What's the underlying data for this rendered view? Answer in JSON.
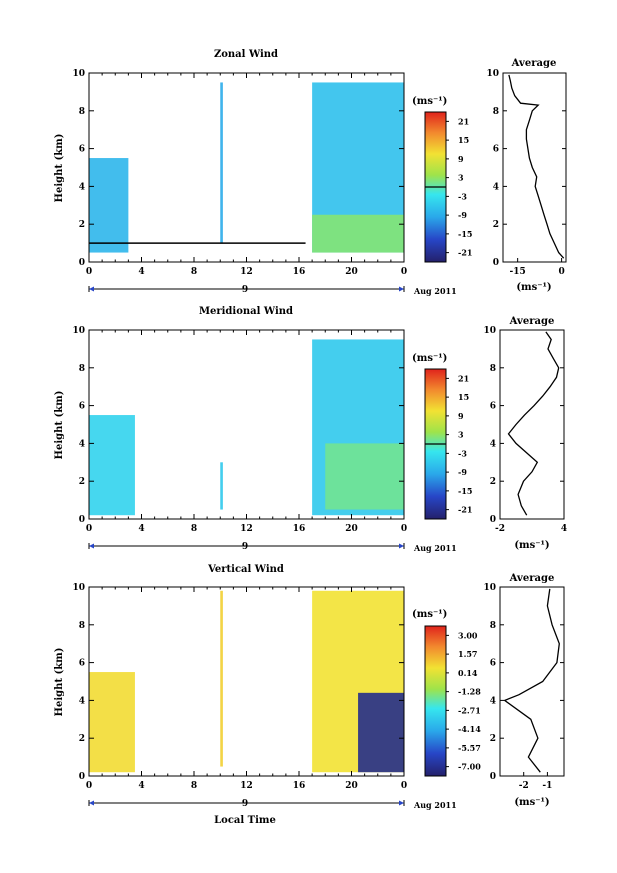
{
  "chart_data": [
    {
      "type": "heatmap",
      "title": "Zonal Wind",
      "xlabel": "",
      "ylabel": "Height (km)",
      "xlim": [
        0,
        24
      ],
      "ylim": [
        0,
        10
      ],
      "xticks": [
        "0",
        "4",
        "8",
        "12",
        "16",
        "20",
        "0"
      ],
      "yticks": [
        "0",
        "2",
        "4",
        "6",
        "8",
        "10"
      ],
      "date_axis": {
        "label": "9",
        "date": "Aug 2011"
      },
      "colorbar": {
        "unit": "(ms⁻¹)",
        "ticks": [
          "21",
          "15",
          "9",
          "3",
          "-3",
          "-9",
          "-15",
          "-21"
        ],
        "contour_level": "0"
      },
      "regions": [
        {
          "x": [
            0,
            3
          ],
          "y": [
            0.5,
            5.5
          ],
          "value": -7
        },
        {
          "x": [
            10,
            10.2
          ],
          "y": [
            1,
            9.5
          ],
          "value": -8
        },
        {
          "x": [
            17,
            24
          ],
          "y": [
            0.5,
            9.5
          ],
          "value": -6
        },
        {
          "x": [
            17,
            24
          ],
          "y": [
            0.5,
            2.5
          ],
          "value": 2
        }
      ],
      "line": {
        "y": 1.0,
        "x": [
          0,
          16.5
        ]
      },
      "average": {
        "title": "Average",
        "xlabel": "(ms⁻¹)",
        "xticks": [
          "-15",
          "0"
        ],
        "xlim": [
          -20,
          1.5
        ],
        "profile": [
          [
            0.7,
            0.2
          ],
          [
            -1,
            0.5
          ],
          [
            -2.5,
            1
          ],
          [
            -4,
            1.5
          ],
          [
            -5,
            2
          ],
          [
            -6,
            2.5
          ],
          [
            -7,
            3
          ],
          [
            -8,
            3.5
          ],
          [
            -9,
            4
          ],
          [
            -8.5,
            4.5
          ],
          [
            -10,
            5
          ],
          [
            -11,
            5.5
          ],
          [
            -11.5,
            6
          ],
          [
            -12,
            6.5
          ],
          [
            -12,
            7
          ],
          [
            -11,
            7.5
          ],
          [
            -10,
            8
          ],
          [
            -8,
            8.3
          ],
          [
            -14,
            8.4
          ],
          [
            -16,
            8.8
          ],
          [
            -17,
            9.2
          ],
          [
            -17.5,
            9.6
          ],
          [
            -18,
            9.9
          ]
        ]
      }
    },
    {
      "type": "heatmap",
      "title": "Meridional Wind",
      "xlabel": "",
      "ylabel": "Height (km)",
      "xlim": [
        0,
        24
      ],
      "ylim": [
        0,
        10
      ],
      "xticks": [
        "0",
        "4",
        "8",
        "12",
        "16",
        "20",
        "0"
      ],
      "yticks": [
        "0",
        "2",
        "4",
        "6",
        "8",
        "10"
      ],
      "date_axis": {
        "label": "9",
        "date": "Aug 2011"
      },
      "colorbar": {
        "unit": "(ms⁻¹)",
        "ticks": [
          "21",
          "15",
          "9",
          "3",
          "-3",
          "-9",
          "-15",
          "-21"
        ],
        "contour_level": "0"
      },
      "regions": [
        {
          "x": [
            0,
            3.5
          ],
          "y": [
            0.2,
            5.5
          ],
          "value": -4
        },
        {
          "x": [
            10,
            10.2
          ],
          "y": [
            0.5,
            3
          ],
          "value": -5
        },
        {
          "x": [
            17,
            24
          ],
          "y": [
            0.2,
            9.5
          ],
          "value": -5
        },
        {
          "x": [
            18,
            24
          ],
          "y": [
            0.5,
            4
          ],
          "value": 1
        }
      ],
      "average": {
        "title": "Average",
        "xlabel": "(ms⁻¹)",
        "xticks": [
          "-2",
          "4"
        ],
        "xlim": [
          -2,
          4
        ],
        "profile": [
          [
            0.5,
            0.2
          ],
          [
            0,
            0.7
          ],
          [
            -0.3,
            1.3
          ],
          [
            0.2,
            2
          ],
          [
            1,
            2.5
          ],
          [
            1.5,
            3
          ],
          [
            0.5,
            3.5
          ],
          [
            -0.5,
            4
          ],
          [
            -1.2,
            4.5
          ],
          [
            -0.5,
            5
          ],
          [
            0.3,
            5.5
          ],
          [
            1.2,
            6
          ],
          [
            2,
            6.5
          ],
          [
            2.7,
            7
          ],
          [
            3.3,
            7.5
          ],
          [
            3.5,
            8
          ],
          [
            3,
            8.5
          ],
          [
            2.5,
            9
          ],
          [
            2.8,
            9.5
          ],
          [
            2.3,
            9.9
          ]
        ]
      }
    },
    {
      "type": "heatmap",
      "title": "Vertical Wind",
      "xlabel": "Local Time",
      "ylabel": "Height (km)",
      "xlim": [
        0,
        24
      ],
      "ylim": [
        0,
        10
      ],
      "xticks": [
        "0",
        "4",
        "8",
        "12",
        "16",
        "20",
        "0"
      ],
      "yticks": [
        "0",
        "2",
        "4",
        "6",
        "8",
        "10"
      ],
      "date_axis": {
        "label": "9",
        "date": "Aug 2011"
      },
      "colorbar": {
        "unit": "(ms⁻¹)",
        "ticks": [
          "3.00",
          "1.57",
          "0.14",
          "-1.28",
          "-2.71",
          "-4.14",
          "-5.57",
          "-7.00"
        ]
      },
      "regions": [
        {
          "x": [
            0,
            3.5
          ],
          "y": [
            0.2,
            5.5
          ],
          "value": 0.3
        },
        {
          "x": [
            10,
            10.2
          ],
          "y": [
            0.5,
            9.8
          ],
          "value": 0.5
        },
        {
          "x": [
            17,
            24
          ],
          "y": [
            0.2,
            9.8
          ],
          "value": 0.2
        },
        {
          "x": [
            20.5,
            24
          ],
          "y": [
            0.2,
            4.4
          ],
          "value": -6.5
        }
      ],
      "average": {
        "title": "Average",
        "xlabel": "(ms⁻¹)",
        "xticks": [
          "-2",
          "-1"
        ],
        "xlim": [
          -3,
          -0.3
        ],
        "profile": [
          [
            -1.3,
            0.2
          ],
          [
            -1.8,
            1
          ],
          [
            -1.4,
            2
          ],
          [
            -1.7,
            3
          ],
          [
            -2.8,
            4
          ],
          [
            -2.2,
            4.3
          ],
          [
            -1.2,
            5
          ],
          [
            -0.6,
            6
          ],
          [
            -0.5,
            7
          ],
          [
            -0.8,
            8
          ],
          [
            -1,
            9
          ],
          [
            -0.9,
            9.9
          ]
        ]
      }
    }
  ]
}
